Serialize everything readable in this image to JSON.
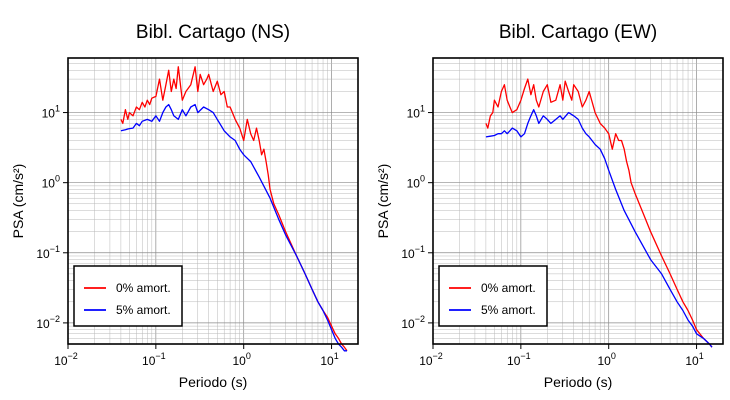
{
  "chart_data": [
    {
      "type": "line",
      "title": "Bibl. Cartago (NS)",
      "xlabel": "Periodo (s)",
      "ylabel": "PSA (cm/s²)",
      "x_scale": "log",
      "y_scale": "log",
      "xlim": [
        0.01,
        20
      ],
      "ylim": [
        0.005,
        60
      ],
      "x_ticks": [
        {
          "base": "10",
          "exp": "−2",
          "value": 0.01
        },
        {
          "base": "10",
          "exp": "−1",
          "value": 0.1
        },
        {
          "base": "10",
          "exp": "0",
          "value": 1
        },
        {
          "base": "10",
          "exp": "1",
          "value": 10
        }
      ],
      "y_ticks": [
        {
          "base": "10",
          "exp": "−2",
          "value": 0.01
        },
        {
          "base": "10",
          "exp": "−1",
          "value": 0.1
        },
        {
          "base": "10",
          "exp": "0",
          "value": 1
        },
        {
          "base": "10",
          "exp": "1",
          "value": 10
        }
      ],
      "grid": true,
      "legend": "bottom-left",
      "series": [
        {
          "name": "0% amort.",
          "color": "#ff0000",
          "x": [
            0.04,
            0.042,
            0.045,
            0.048,
            0.05,
            0.055,
            0.06,
            0.065,
            0.07,
            0.075,
            0.08,
            0.085,
            0.09,
            0.1,
            0.11,
            0.12,
            0.13,
            0.14,
            0.15,
            0.16,
            0.17,
            0.18,
            0.2,
            0.22,
            0.25,
            0.28,
            0.3,
            0.32,
            0.35,
            0.38,
            0.4,
            0.45,
            0.5,
            0.55,
            0.6,
            0.65,
            0.7,
            0.8,
            0.9,
            1.0,
            1.1,
            1.2,
            1.3,
            1.4,
            1.5,
            1.6,
            1.7,
            1.8,
            1.9,
            2.0,
            2.2,
            2.5,
            3.0,
            4.0,
            5.0,
            6.0,
            7.0,
            8.0,
            9.0,
            10.0,
            11.0,
            12.0,
            13.0,
            14.0,
            15.0
          ],
          "y": [
            8,
            7,
            11,
            8,
            10,
            9,
            12,
            11,
            14,
            12,
            15,
            13,
            16,
            17,
            30,
            15,
            25,
            40,
            20,
            30,
            22,
            45,
            15,
            20,
            25,
            45,
            20,
            35,
            25,
            30,
            35,
            20,
            28,
            18,
            20,
            12,
            12,
            8,
            6,
            4,
            8,
            5,
            4,
            6,
            4,
            2.5,
            3,
            2,
            1.3,
            0.8,
            0.5,
            0.35,
            0.2,
            0.09,
            0.05,
            0.03,
            0.02,
            0.015,
            0.012,
            0.009,
            0.007,
            0.006,
            0.005,
            0.0045,
            0.004
          ]
        },
        {
          "name": "5% amort.",
          "color": "#0000ff",
          "x": [
            0.04,
            0.045,
            0.05,
            0.055,
            0.06,
            0.065,
            0.07,
            0.08,
            0.09,
            0.1,
            0.11,
            0.12,
            0.13,
            0.14,
            0.15,
            0.16,
            0.18,
            0.2,
            0.22,
            0.25,
            0.28,
            0.3,
            0.35,
            0.4,
            0.45,
            0.5,
            0.6,
            0.7,
            0.8,
            0.9,
            1.0,
            1.2,
            1.5,
            2.0,
            2.5,
            3.0,
            4.0,
            5.0,
            6.0,
            7.0,
            8.0,
            9.0,
            10.0,
            11.0,
            12.0,
            13.0,
            14.0,
            15.0
          ],
          "y": [
            5.5,
            5.7,
            5.9,
            6.0,
            7.0,
            6.5,
            7.5,
            8.0,
            7.5,
            9.0,
            7.5,
            10.0,
            12.0,
            13.0,
            11.0,
            9.0,
            8.0,
            11.0,
            9.0,
            12.0,
            13.0,
            10.0,
            12.0,
            11.0,
            10.0,
            8.0,
            5.5,
            4.5,
            4.0,
            3.0,
            2.5,
            2.0,
            1.2,
            0.6,
            0.3,
            0.18,
            0.09,
            0.05,
            0.03,
            0.02,
            0.015,
            0.011,
            0.008,
            0.006,
            0.005,
            0.0045,
            0.004,
            0.004
          ]
        }
      ]
    },
    {
      "type": "line",
      "title": "Bibl. Cartago (EW)",
      "xlabel": "Periodo (s)",
      "ylabel": "PSA (cm/s²)",
      "x_scale": "log",
      "y_scale": "log",
      "xlim": [
        0.01,
        20
      ],
      "ylim": [
        0.005,
        60
      ],
      "x_ticks": [
        {
          "base": "10",
          "exp": "−2",
          "value": 0.01
        },
        {
          "base": "10",
          "exp": "−1",
          "value": 0.1
        },
        {
          "base": "10",
          "exp": "0",
          "value": 1
        },
        {
          "base": "10",
          "exp": "1",
          "value": 10
        }
      ],
      "y_ticks": [
        {
          "base": "10",
          "exp": "−2",
          "value": 0.01
        },
        {
          "base": "10",
          "exp": "−1",
          "value": 0.1
        },
        {
          "base": "10",
          "exp": "0",
          "value": 1
        },
        {
          "base": "10",
          "exp": "1",
          "value": 10
        }
      ],
      "grid": true,
      "legend": "bottom-left",
      "series": [
        {
          "name": "0% amort.",
          "color": "#ff0000",
          "x": [
            0.04,
            0.042,
            0.045,
            0.048,
            0.05,
            0.055,
            0.06,
            0.065,
            0.07,
            0.075,
            0.08,
            0.09,
            0.1,
            0.11,
            0.12,
            0.13,
            0.14,
            0.15,
            0.16,
            0.18,
            0.2,
            0.22,
            0.25,
            0.28,
            0.3,
            0.32,
            0.35,
            0.38,
            0.4,
            0.45,
            0.5,
            0.55,
            0.6,
            0.7,
            0.8,
            0.9,
            1.0,
            1.1,
            1.2,
            1.3,
            1.4,
            1.5,
            1.6,
            1.7,
            1.8,
            2.0,
            2.5,
            3.0,
            4.0,
            5.0,
            6.0,
            7.0,
            8.0,
            9.0,
            10.0,
            12.0,
            14.0,
            15.0
          ],
          "y": [
            7,
            6,
            9,
            10,
            15,
            12,
            20,
            25,
            15,
            12,
            10,
            11,
            15,
            22,
            30,
            18,
            25,
            15,
            12,
            20,
            25,
            14,
            15,
            25,
            15,
            28,
            20,
            15,
            25,
            20,
            12,
            15,
            20,
            10,
            7,
            6,
            5,
            3,
            5,
            4,
            4,
            3,
            2,
            1.5,
            1,
            0.7,
            0.35,
            0.2,
            0.09,
            0.05,
            0.03,
            0.02,
            0.015,
            0.011,
            0.008,
            0.006,
            0.005,
            0.0045
          ]
        },
        {
          "name": "5% amort.",
          "color": "#0000ff",
          "x": [
            0.04,
            0.045,
            0.05,
            0.055,
            0.06,
            0.065,
            0.07,
            0.075,
            0.08,
            0.09,
            0.1,
            0.11,
            0.12,
            0.13,
            0.14,
            0.15,
            0.16,
            0.18,
            0.2,
            0.22,
            0.25,
            0.28,
            0.3,
            0.35,
            0.4,
            0.45,
            0.5,
            0.55,
            0.6,
            0.7,
            0.8,
            0.9,
            1.0,
            1.2,
            1.5,
            2.0,
            2.5,
            3.0,
            4.0,
            5.0,
            6.0,
            7.0,
            8.0,
            9.0,
            10.0,
            12.0,
            14.0,
            15.0
          ],
          "y": [
            4.5,
            4.6,
            4.7,
            5.0,
            5.0,
            5.5,
            5.0,
            5.5,
            6.0,
            5.5,
            4.5,
            5.0,
            7.0,
            9.0,
            11.0,
            9.0,
            7.0,
            9.0,
            8.0,
            7.0,
            8.0,
            9.0,
            8.0,
            10.0,
            9.0,
            8.0,
            6.0,
            5.0,
            4.5,
            3.5,
            3.0,
            2.2,
            1.5,
            0.8,
            0.4,
            0.2,
            0.12,
            0.08,
            0.05,
            0.03,
            0.02,
            0.015,
            0.011,
            0.009,
            0.007,
            0.006,
            0.005,
            0.0045
          ]
        }
      ]
    }
  ]
}
